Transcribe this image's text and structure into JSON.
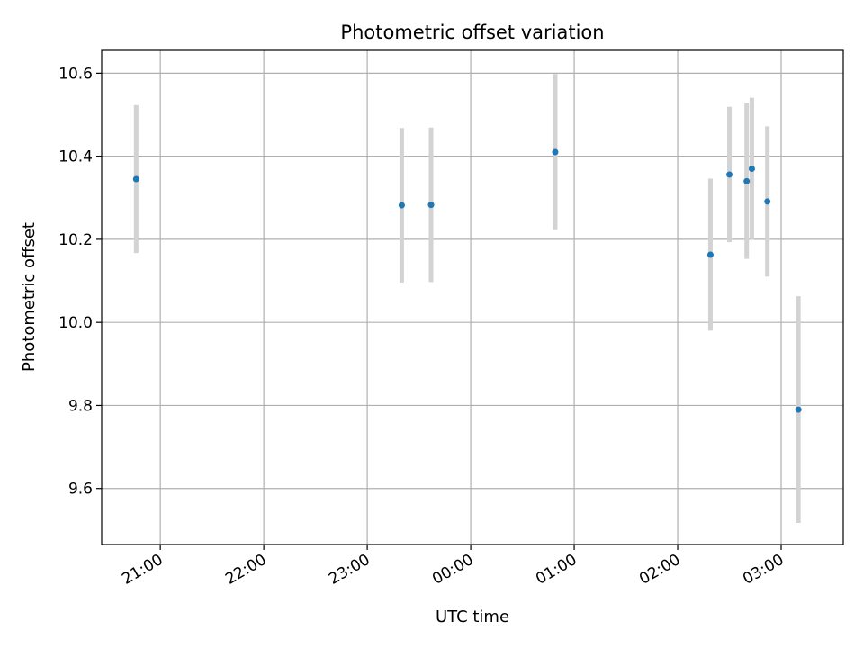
{
  "chart_data": {
    "type": "scatter",
    "title": "Photometric offset variation",
    "xlabel": "UTC time",
    "ylabel": "Photometric offset",
    "x_axis_kind": "time",
    "xlim": [
      "20:26",
      "03:36"
    ],
    "ylim": [
      9.465,
      10.655
    ],
    "x_ticks": [
      "21:00",
      "22:00",
      "23:00",
      "00:00",
      "01:00",
      "02:00",
      "03:00"
    ],
    "y_ticks": [
      9.6,
      9.8,
      10.0,
      10.2,
      10.4,
      10.6
    ],
    "y_tick_labels": [
      "9.6",
      "9.8",
      "10.0",
      "10.2",
      "10.4",
      "10.6"
    ],
    "grid": true,
    "point_color": "#1f77b4",
    "errorbar_color": "#d3d3d3",
    "points": [
      {
        "x": "20:46",
        "y": 10.345,
        "err": 0.178
      },
      {
        "x": "23:20",
        "y": 10.282,
        "err": 0.186
      },
      {
        "x": "23:37",
        "y": 10.283,
        "err": 0.186
      },
      {
        "x": "00:49",
        "y": 10.41,
        "err": 0.188
      },
      {
        "x": "02:19",
        "y": 10.163,
        "err": 0.183
      },
      {
        "x": "02:30",
        "y": 10.356,
        "err": 0.163
      },
      {
        "x": "02:40",
        "y": 10.34,
        "err": 0.187
      },
      {
        "x": "02:43",
        "y": 10.37,
        "err": 0.171
      },
      {
        "x": "02:52",
        "y": 10.291,
        "err": 0.181
      },
      {
        "x": "03:10",
        "y": 9.79,
        "err": 0.273
      }
    ]
  }
}
